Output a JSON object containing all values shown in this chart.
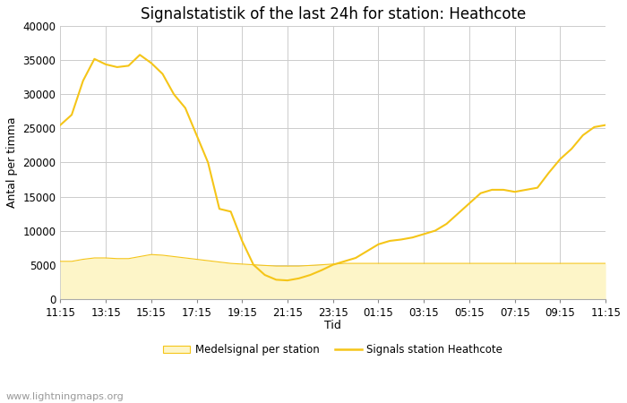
{
  "title": "Signalstatistik of the last 24h for station: Heathcote",
  "xlabel": "Tid",
  "ylabel": "Antal per timma",
  "xlim_labels": [
    "11:15",
    "13:15",
    "15:15",
    "17:15",
    "19:15",
    "21:15",
    "23:15",
    "01:15",
    "03:15",
    "05:15",
    "07:15",
    "09:15",
    "11:15"
  ],
  "ylim": [
    0,
    40000
  ],
  "yticks": [
    0,
    5000,
    10000,
    15000,
    20000,
    25000,
    30000,
    35000,
    40000
  ],
  "watermark": "www.lightningmaps.org",
  "legend_label_fill": "Medelsignal per station",
  "legend_label_line": "Signals station Heathcote",
  "line_color": "#f5c518",
  "fill_color": "#fdf5c8",
  "fill_edge_color": "#f5c518",
  "background_color": "#ffffff",
  "grid_color": "#cccccc",
  "signal_x": [
    0,
    1,
    2,
    3,
    4,
    5,
    6,
    7,
    8,
    9,
    10,
    11,
    12,
    13,
    14,
    15,
    16,
    17,
    18,
    19,
    20,
    21,
    22,
    23,
    24,
    25,
    26,
    27,
    28,
    29,
    30,
    31,
    32,
    33,
    34,
    35,
    36,
    37,
    38,
    39,
    40,
    41,
    42,
    43,
    44,
    45,
    46,
    47,
    48
  ],
  "signal_y": [
    25500,
    27000,
    32000,
    35200,
    34400,
    34000,
    34200,
    35800,
    34600,
    33000,
    30000,
    28000,
    24000,
    20000,
    13200,
    12800,
    8500,
    5000,
    3500,
    2800,
    2700,
    3000,
    3500,
    4200,
    5000,
    5500,
    6000,
    7000,
    8000,
    8500,
    8700,
    9000,
    9500,
    10000,
    11000,
    12500,
    14000,
    15500,
    16000,
    16000,
    15700,
    16000,
    16300,
    18500,
    20500,
    22000,
    24000,
    25200,
    25500
  ],
  "fill_x": [
    0,
    1,
    2,
    3,
    4,
    5,
    6,
    7,
    8,
    9,
    10,
    11,
    12,
    13,
    14,
    15,
    16,
    17,
    18,
    19,
    20,
    21,
    22,
    23,
    24,
    25,
    26,
    27,
    28,
    29,
    30,
    31,
    32,
    33,
    34,
    35,
    36,
    37,
    38,
    39,
    40,
    41,
    42,
    43,
    44,
    45,
    46,
    47,
    48
  ],
  "fill_y": [
    5500,
    5500,
    5800,
    6000,
    6000,
    5900,
    5900,
    6200,
    6500,
    6400,
    6200,
    6000,
    5800,
    5600,
    5400,
    5200,
    5100,
    5000,
    4900,
    4800,
    4800,
    4800,
    4900,
    5000,
    5100,
    5200,
    5200,
    5200,
    5200,
    5200,
    5200,
    5200,
    5200,
    5200,
    5200,
    5200,
    5200,
    5200,
    5200,
    5200,
    5200,
    5200,
    5200,
    5200,
    5200,
    5200,
    5200,
    5200,
    5200
  ],
  "title_fontsize": 12,
  "axis_fontsize": 9,
  "tick_fontsize": 8.5,
  "watermark_fontsize": 8
}
